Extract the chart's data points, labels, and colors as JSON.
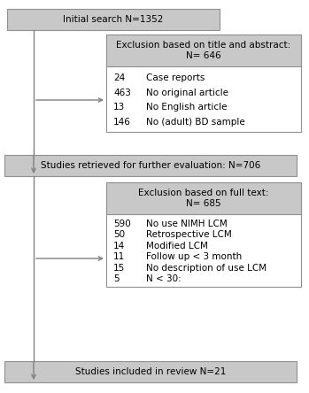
{
  "bg_color": "#ffffff",
  "box_face_color": "#c8c8c8",
  "box_edge_color": "#909090",
  "inner_box_face_color": "#ffffff",
  "inner_box_edge_color": "#909090",
  "title_box1": "Initial search N=1352",
  "title_box2": "Studies retrieved for further evaluation: N=706",
  "title_box3": "Studies included in review N=21",
  "excl1_header_line1": "Exclusion based on title and abstract:",
  "excl1_header_line2": "N= 646",
  "excl1_items": [
    [
      "24",
      "Case reports"
    ],
    [
      "463",
      "No original article"
    ],
    [
      "13",
      "No English article"
    ],
    [
      "146",
      "No (adult) BD sample"
    ]
  ],
  "excl2_header_line1": "Exclusion based on full text:",
  "excl2_header_line2": "N= 685",
  "excl2_items": [
    [
      "590",
      "No use NIMH LCM"
    ],
    [
      "50",
      "Retrospective LCM"
    ],
    [
      "14",
      "Modified LCM"
    ],
    [
      "11",
      "Follow up < 3 month"
    ],
    [
      "15",
      "No description of use LCM"
    ],
    [
      "5",
      "N < 30:"
    ]
  ],
  "arrow_color": "#808080",
  "text_color": "#000000",
  "fontsize": 7.5
}
